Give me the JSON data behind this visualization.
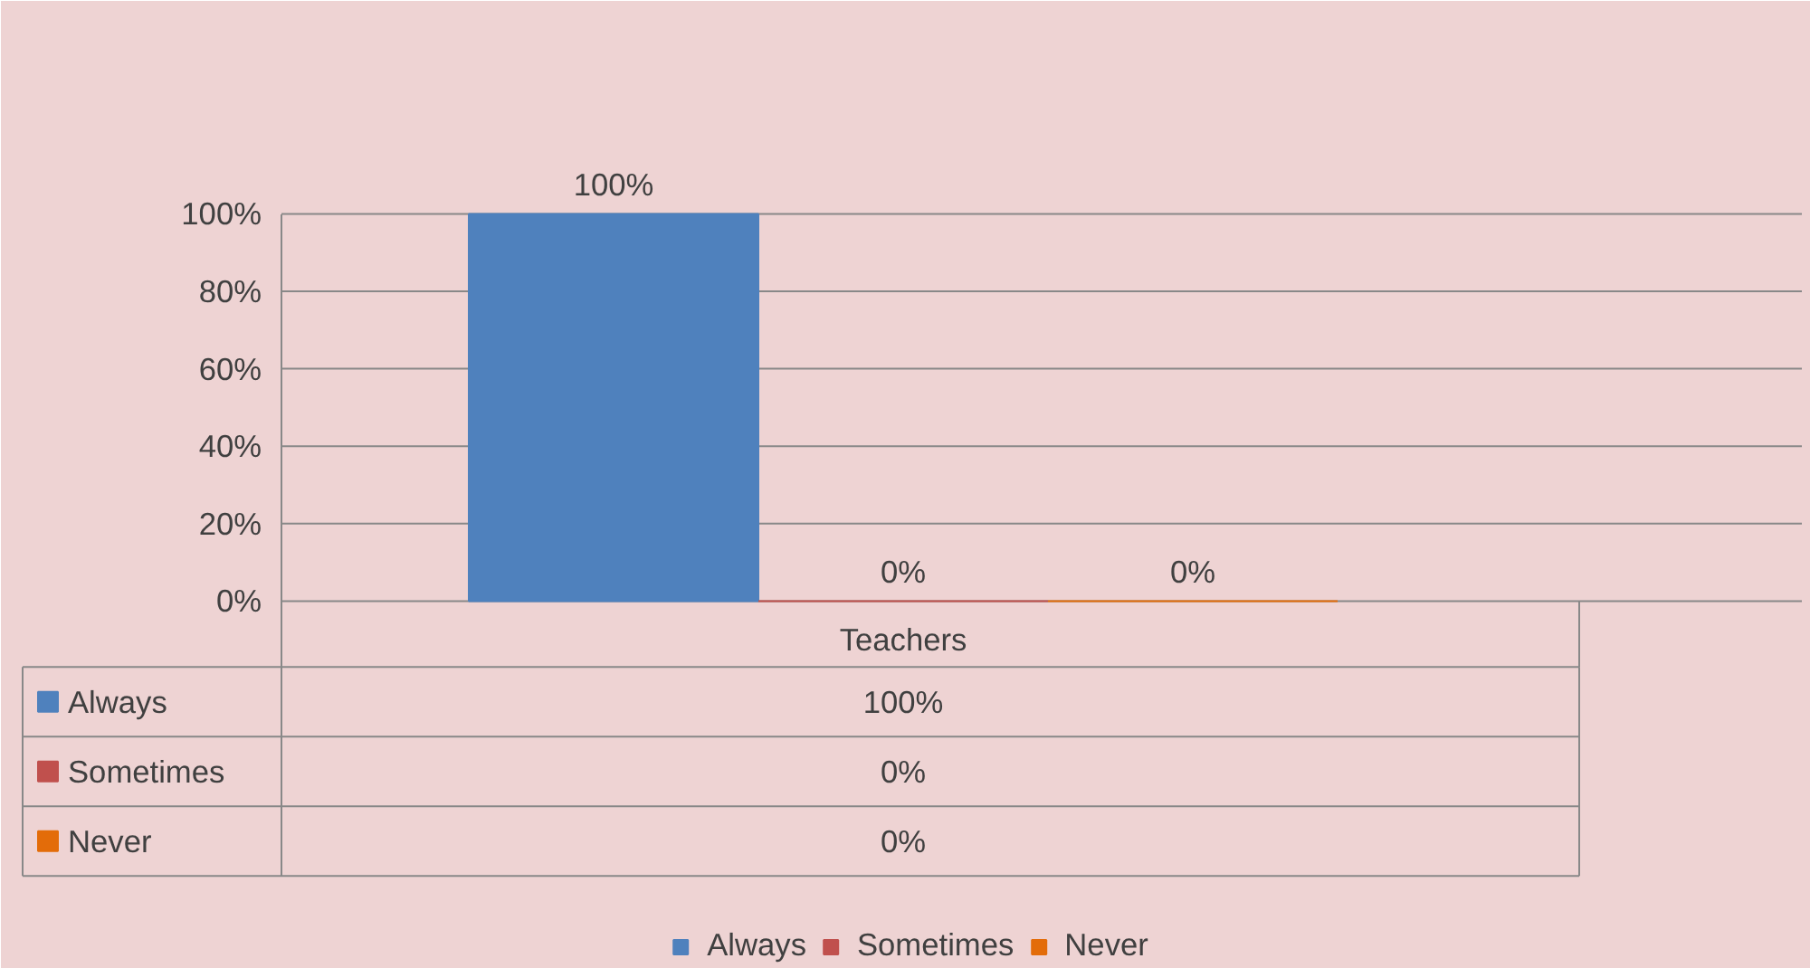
{
  "chart_data": {
    "type": "bar",
    "categories": [
      "Teachers"
    ],
    "series": [
      {
        "name": "Always",
        "color": "#4f81bd",
        "values": [
          100
        ],
        "value_labels": [
          "100%"
        ]
      },
      {
        "name": "Sometimes",
        "color": "#c0504d",
        "values": [
          0
        ],
        "value_labels": [
          "0%"
        ]
      },
      {
        "name": "Never",
        "color": "#e36c09",
        "values": [
          0
        ],
        "value_labels": [
          "0%"
        ]
      }
    ],
    "ylim": [
      0,
      100
    ],
    "yticks": [
      {
        "value": 0,
        "label": "0%"
      },
      {
        "value": 20,
        "label": "20%"
      },
      {
        "value": 40,
        "label": "40%"
      },
      {
        "value": 60,
        "label": "60%"
      },
      {
        "value": 80,
        "label": "80%"
      },
      {
        "value": 100,
        "label": "100%"
      }
    ],
    "grid": "y",
    "legend": "bottom"
  }
}
